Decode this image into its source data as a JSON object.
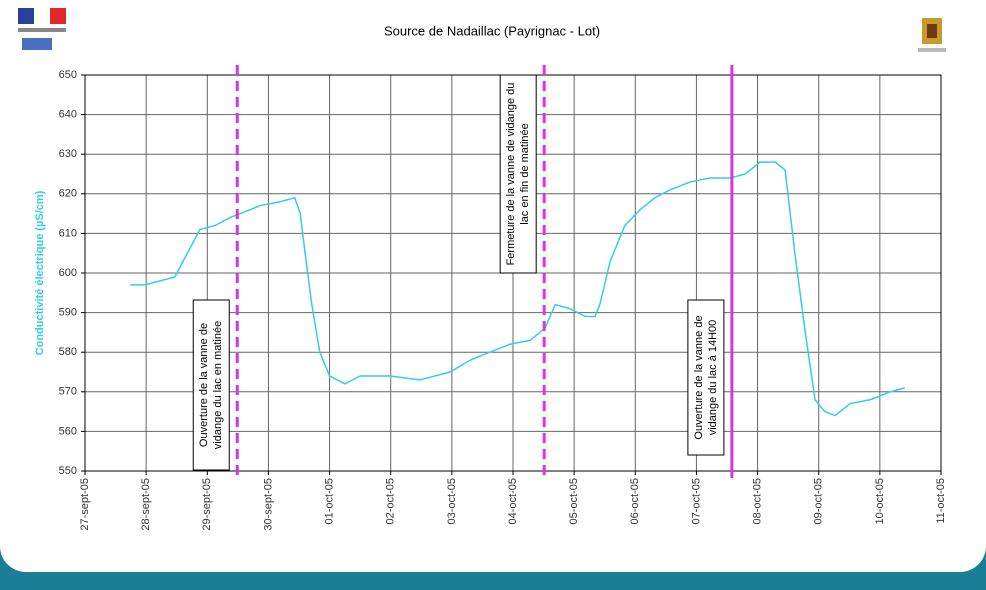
{
  "chart_data": {
    "type": "line",
    "title": "Source de Nadaillac (Payrignac - Lot)",
    "y_label": "Conductivité électrique (µS/cm)",
    "x": [
      0.74,
      0.98,
      1.47,
      1.64,
      1.88,
      2.13,
      2.37,
      2.54,
      2.86,
      3.19,
      3.43,
      3.52,
      3.6,
      3.71,
      3.84,
      4.0,
      4.25,
      4.5,
      4.99,
      5.48,
      5.97,
      6.3,
      6.62,
      6.95,
      7.28,
      7.52,
      7.69,
      7.93,
      8.18,
      8.34,
      8.42,
      8.59,
      8.83,
      9.08,
      9.32,
      9.57,
      9.9,
      10.22,
      10.55,
      10.8,
      11.04,
      11.29,
      11.45,
      11.61,
      11.78,
      11.94,
      12.1,
      12.27,
      12.51,
      12.84,
      13.17,
      13.41
    ],
    "series": [
      {
        "color": "#33ccee",
        "values": [
          597,
          597,
          599,
          604,
          611,
          612,
          614,
          615,
          617,
          618,
          619,
          615,
          605,
          592,
          580,
          574,
          572,
          574,
          574,
          573,
          575,
          578,
          580,
          582,
          583,
          586,
          592,
          591,
          589,
          589,
          592,
          603,
          612,
          616,
          619,
          621,
          623,
          624,
          624,
          625,
          628,
          628,
          626,
          605,
          585,
          568,
          565,
          564,
          567,
          568,
          570,
          571
        ]
      }
    ],
    "xlim": [
      0,
      14
    ],
    "xticks": [
      {
        "value": 0,
        "label": "27-sept-05"
      },
      {
        "value": 1,
        "label": "28-sept-05"
      },
      {
        "value": 2,
        "label": "29-sept-05"
      },
      {
        "value": 3,
        "label": "30-sept-05"
      },
      {
        "value": 4,
        "label": "01-oct-05"
      },
      {
        "value": 5,
        "label": "02-oct-05"
      },
      {
        "value": 6,
        "label": "03-oct-05"
      },
      {
        "value": 7,
        "label": "04-oct-05"
      },
      {
        "value": 8,
        "label": "05-oct-05"
      },
      {
        "value": 9,
        "label": "06-oct-05"
      },
      {
        "value": 10,
        "label": "07-oct-05"
      },
      {
        "value": 11,
        "label": "08-oct-05"
      },
      {
        "value": 12,
        "label": "09-oct-05"
      },
      {
        "value": 13,
        "label": "10-oct-05"
      },
      {
        "value": 14,
        "label": "11-oct-05"
      }
    ],
    "ylim": [
      550,
      650
    ],
    "yticks": [
      550,
      560,
      570,
      580,
      590,
      600,
      610,
      620,
      630,
      640,
      650
    ],
    "grid": true,
    "annotations": [
      {
        "x": 2.49,
        "style": "dashed",
        "color": "#dd33dd",
        "lines": [
          "Ouverture de la vanne de",
          "vidange du lac en matinée"
        ]
      },
      {
        "x": 7.51,
        "style": "dashed",
        "color": "#dd33dd",
        "lines": [
          "Fermeture de la vanne de vidange du",
          "lac en fin de matinée"
        ]
      },
      {
        "x": 10.58,
        "style": "solid",
        "color": "#dd33dd",
        "lines": [
          "Ouverture de la vanne de",
          "vidange du lac à 14H00"
        ]
      }
    ]
  }
}
